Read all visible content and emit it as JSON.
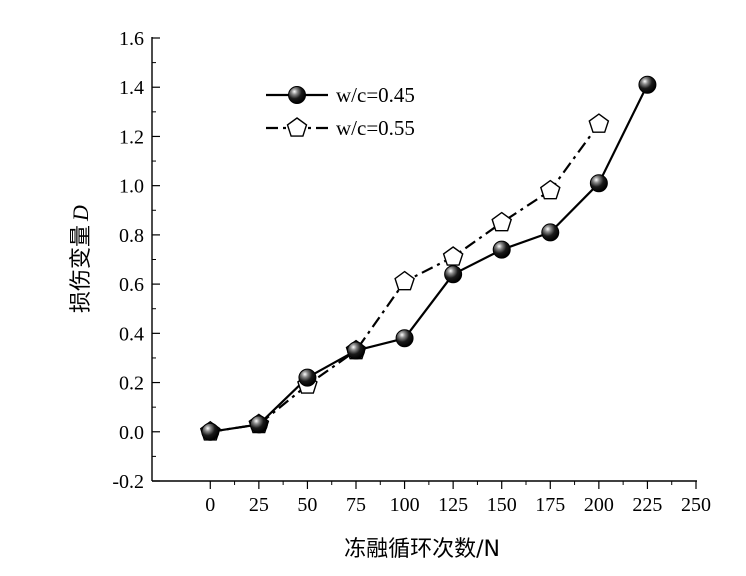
{
  "chart_data": {
    "type": "line",
    "title": "",
    "xlabel": "冻融循环次数/N",
    "ylabel": "损伤变量",
    "ylabel_symbol": "D",
    "xlim": [
      -30,
      250
    ],
    "ylim": [
      -0.2,
      1.6
    ],
    "x_ticks": [
      0,
      25,
      50,
      75,
      100,
      125,
      150,
      175,
      200,
      225,
      250
    ],
    "y_ticks": [
      -0.2,
      0.0,
      0.2,
      0.4,
      0.6,
      0.8,
      1.0,
      1.2,
      1.4,
      1.6
    ],
    "y_tick_labels": [
      "-0.2",
      "0.0",
      "0.2",
      "0.4",
      "0.6",
      "0.8",
      "1.0",
      "1.2",
      "1.4",
      "1.6"
    ],
    "grid": false,
    "legend_position": "top-left",
    "series": [
      {
        "name": "w/c=0.45",
        "marker": "sphere",
        "line_style": "solid",
        "x": [
          0,
          25,
          50,
          75,
          100,
          125,
          150,
          175,
          200,
          225
        ],
        "y": [
          0.0,
          0.03,
          0.22,
          0.33,
          0.38,
          0.64,
          0.74,
          0.81,
          1.01,
          1.41
        ]
      },
      {
        "name": "w/c=0.55",
        "marker": "pentagon",
        "line_style": "dash-dot",
        "x": [
          0,
          25,
          50,
          75,
          100,
          125,
          150,
          175,
          200
        ],
        "y": [
          0.0,
          0.03,
          0.19,
          0.33,
          0.61,
          0.71,
          0.85,
          0.98,
          1.25
        ]
      }
    ]
  }
}
